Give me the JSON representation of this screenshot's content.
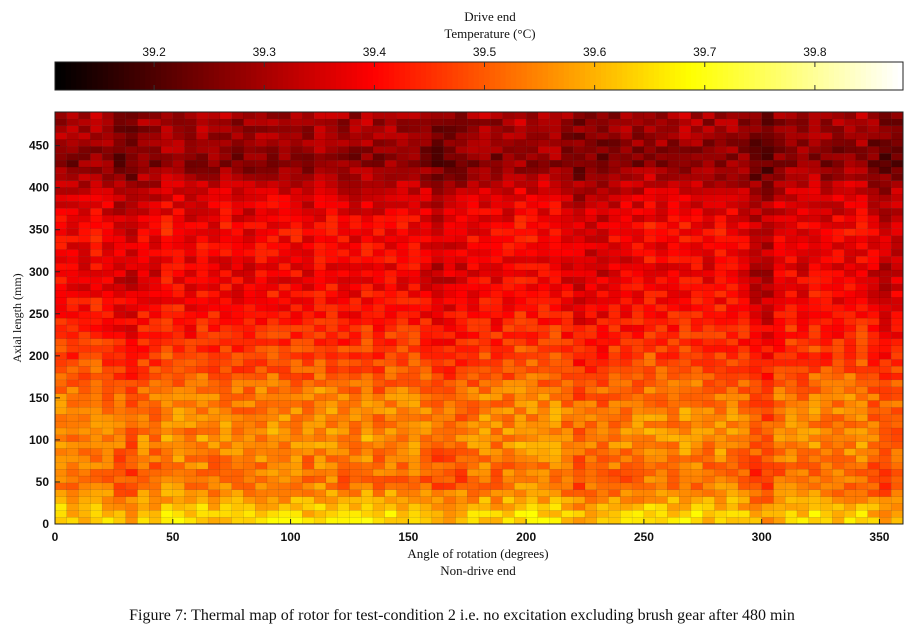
{
  "chart_data": {
    "type": "heatmap",
    "title": "Drive end",
    "colorbar": {
      "label": "Temperature (°C)",
      "ticks": [
        39.2,
        39.3,
        39.4,
        39.5,
        39.6,
        39.7,
        39.8
      ],
      "range": [
        39.11,
        39.88
      ],
      "colormap": "hot",
      "placement": "top"
    },
    "xlabel": "Angle of rotation (degrees)",
    "x_note": "Non-drive end",
    "ylabel": "Axial length (mm)",
    "xlim": [
      0,
      360
    ],
    "ylim": [
      0,
      490
    ],
    "xticks": [
      0,
      50,
      100,
      150,
      200,
      250,
      300,
      350
    ],
    "yticks": [
      0,
      50,
      100,
      150,
      200,
      250,
      300,
      350,
      400,
      450
    ],
    "grid": false,
    "resolution": {
      "angle_columns": 72,
      "axial_rows": 60
    },
    "temperature_profile_by_axial_length": [
      {
        "axial_mm": 10,
        "temp_c": 39.64
      },
      {
        "axial_mm": 50,
        "temp_c": 39.52
      },
      {
        "axial_mm": 100,
        "temp_c": 39.56
      },
      {
        "axial_mm": 150,
        "temp_c": 39.54
      },
      {
        "axial_mm": 200,
        "temp_c": 39.47
      },
      {
        "axial_mm": 250,
        "temp_c": 39.42
      },
      {
        "axial_mm": 300,
        "temp_c": 39.38
      },
      {
        "axial_mm": 350,
        "temp_c": 39.4
      },
      {
        "axial_mm": 400,
        "temp_c": 39.34
      },
      {
        "axial_mm": 430,
        "temp_c": 39.27
      },
      {
        "axial_mm": 470,
        "temp_c": 39.3
      }
    ],
    "cool_angle_bands": [
      {
        "angle_deg": 30,
        "delta_c": -0.04
      },
      {
        "angle_deg": 165,
        "delta_c": -0.04
      },
      {
        "angle_deg": 225,
        "delta_c": -0.05
      },
      {
        "angle_deg": 300,
        "delta_c": -0.07
      },
      {
        "angle_deg": 355,
        "delta_c": -0.05
      }
    ]
  },
  "caption": "Figure 7: Thermal map of rotor for test-condition 2 i.e. no excitation excluding brush gear after 480 min"
}
